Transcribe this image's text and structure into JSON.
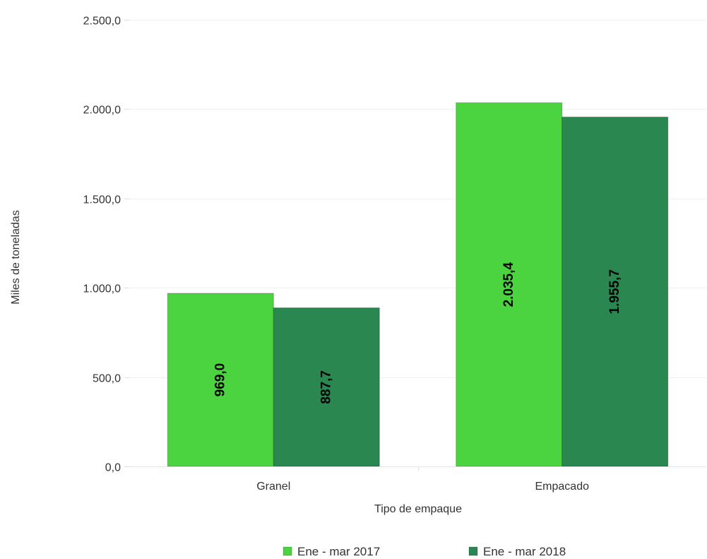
{
  "chart_data": {
    "type": "bar",
    "categories": [
      "Granel",
      "Empacado"
    ],
    "series": [
      {
        "name": "Ene - mar 2017",
        "color": "#4cd340",
        "values": [
          969.0,
          2035.4
        ],
        "labels": [
          "969,0",
          "2.035,4"
        ]
      },
      {
        "name": "Ene - mar 2018",
        "color": "#2a8750",
        "values": [
          887.7,
          1955.7
        ],
        "labels": [
          "887,7",
          "1.955,7"
        ]
      }
    ],
    "xlabel": "Tipo de empaque",
    "ylabel": "Miles de toneladas",
    "ylim": [
      0,
      2500
    ],
    "yticks": [
      0,
      500,
      1000,
      1500,
      2000,
      2500
    ],
    "ytick_labels": [
      "0,0",
      "500,0",
      "1.000,0",
      "1.500,0",
      "2.000,0",
      "2.500,0"
    ],
    "grid": true,
    "legend_position": "bottom"
  }
}
